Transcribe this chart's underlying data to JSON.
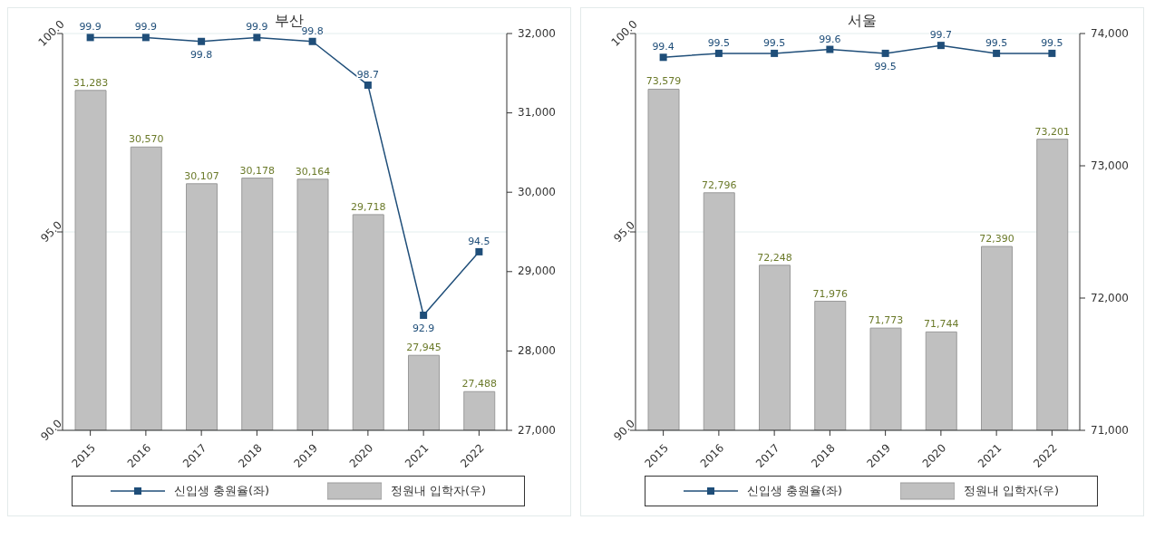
{
  "chart_data": [
    {
      "type": "bar",
      "title": "부산",
      "categories": [
        "2015",
        "2016",
        "2017",
        "2018",
        "2019",
        "2020",
        "2021",
        "2022"
      ],
      "series": [
        {
          "name": "신입생 충원율(좌)",
          "type": "line",
          "axis": "y",
          "color": "#1f4e79",
          "values": [
            99.9,
            99.9,
            99.8,
            99.9,
            99.8,
            98.7,
            92.9,
            94.5
          ],
          "value_labels": [
            "99.9",
            "99.9",
            "99.8",
            "99.9",
            "99.8",
            "98.7",
            "92.9",
            "94.5"
          ]
        },
        {
          "name": "정원내 입학자(우)",
          "axis": "y2",
          "color": "#c0c0c0",
          "values": [
            31283,
            30570,
            30107,
            30178,
            30164,
            29718,
            27945,
            27488
          ],
          "value_labels": [
            "31,283",
            "30,570",
            "30,107",
            "30,178",
            "30,164",
            "29,718",
            "27,945",
            "27,488"
          ]
        }
      ],
      "ylim": [
        90,
        100
      ],
      "yticks": [
        {
          "value": 90,
          "label": "90.0"
        },
        {
          "value": 95,
          "label": "95.0"
        },
        {
          "value": 100,
          "label": "100.0"
        }
      ],
      "y2lim": [
        27000,
        32000
      ],
      "y2ticks": [
        {
          "value": 27000,
          "label": "27,000"
        },
        {
          "value": 28000,
          "label": "28,000"
        },
        {
          "value": 29000,
          "label": "29,000"
        },
        {
          "value": 30000,
          "label": "30,000"
        },
        {
          "value": 31000,
          "label": "31,000"
        },
        {
          "value": 32000,
          "label": "32,000"
        }
      ],
      "grid": "y",
      "legend": "bottom",
      "marker": "square"
    },
    {
      "type": "bar",
      "title": "서울",
      "categories": [
        "2015",
        "2016",
        "2017",
        "2018",
        "2019",
        "2020",
        "2021",
        "2022"
      ],
      "series": [
        {
          "name": "신입생 충원율(좌)",
          "type": "line",
          "axis": "y",
          "color": "#1f4e79",
          "values": [
            99.4,
            99.5,
            99.5,
            99.6,
            99.5,
            99.7,
            99.5,
            99.5
          ],
          "value_labels": [
            "99.4",
            "99.5",
            "99.5",
            "99.6",
            "99.5",
            "99.7",
            "99.5",
            "99.5"
          ]
        },
        {
          "name": "정원내 입학자(우)",
          "axis": "y2",
          "color": "#c0c0c0",
          "values": [
            73579,
            72796,
            72248,
            71976,
            71773,
            71744,
            72390,
            73201
          ],
          "value_labels": [
            "73,579",
            "72,796",
            "72,248",
            "71,976",
            "71,773",
            "71,744",
            "72,390",
            "73,201"
          ]
        }
      ],
      "ylim": [
        90,
        100
      ],
      "yticks": [
        {
          "value": 90,
          "label": "90.0"
        },
        {
          "value": 95,
          "label": "95.0"
        },
        {
          "value": 100,
          "label": "100.0"
        }
      ],
      "y2lim": [
        71000,
        74000
      ],
      "y2ticks": [
        {
          "value": 71000,
          "label": "71,000"
        },
        {
          "value": 72000,
          "label": "72,000"
        },
        {
          "value": 73000,
          "label": "73,000"
        },
        {
          "value": 74000,
          "label": "74,000"
        }
      ],
      "grid": "y",
      "legend": "bottom",
      "marker": "square"
    }
  ]
}
